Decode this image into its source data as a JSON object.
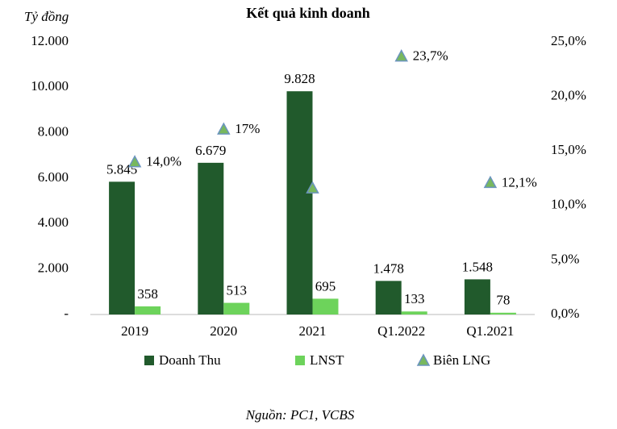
{
  "chart_data": {
    "type": "bar",
    "title": "Kết quả kinh doanh",
    "y_label": "Tỷ đồng",
    "source": "Nguồn: PC1, VCBS",
    "categories": [
      "2019",
      "2020",
      "2021",
      "Q1.2022",
      "Q1.2021"
    ],
    "series": [
      {
        "name": "Doanh Thu",
        "color": "#215a2c",
        "values": [
          5845,
          6679,
          9828,
          1478,
          1548
        ],
        "value_labels": [
          "5.845",
          "6.679",
          "9.828",
          "1.478",
          "1.548"
        ]
      },
      {
        "name": "LNST",
        "color": "#6dd35b",
        "values": [
          358,
          513,
          695,
          133,
          78
        ]
      },
      {
        "name": "Biên LNG",
        "type": "scatter",
        "axis": "y2",
        "color": "#78b85e",
        "values": [
          14.0,
          17,
          11.6,
          23.7,
          12.1
        ],
        "value_labels": [
          "14,0%",
          "17%",
          null,
          "23,7%",
          "12,1%"
        ]
      }
    ],
    "ylim": [
      0,
      12000
    ],
    "yticks": [
      {
        "value": 0,
        "label": "-"
      },
      {
        "value": 2000,
        "label": "2.000"
      },
      {
        "value": 4000,
        "label": "4.000"
      },
      {
        "value": 6000,
        "label": "6.000"
      },
      {
        "value": 8000,
        "label": "8.000"
      },
      {
        "value": 10000,
        "label": "10.000"
      },
      {
        "value": 12000,
        "label": "12.000"
      }
    ],
    "y2lim": [
      0,
      25
    ],
    "y2ticks": [
      {
        "value": 0,
        "label": "0,0%"
      },
      {
        "value": 5,
        "label": "5,0%"
      },
      {
        "value": 10,
        "label": "10,0%"
      },
      {
        "value": 15,
        "label": "15,0%"
      },
      {
        "value": 20,
        "label": "20,0%"
      },
      {
        "value": 25,
        "label": "25,0%"
      }
    ],
    "grid": false,
    "legend": "bottom"
  }
}
